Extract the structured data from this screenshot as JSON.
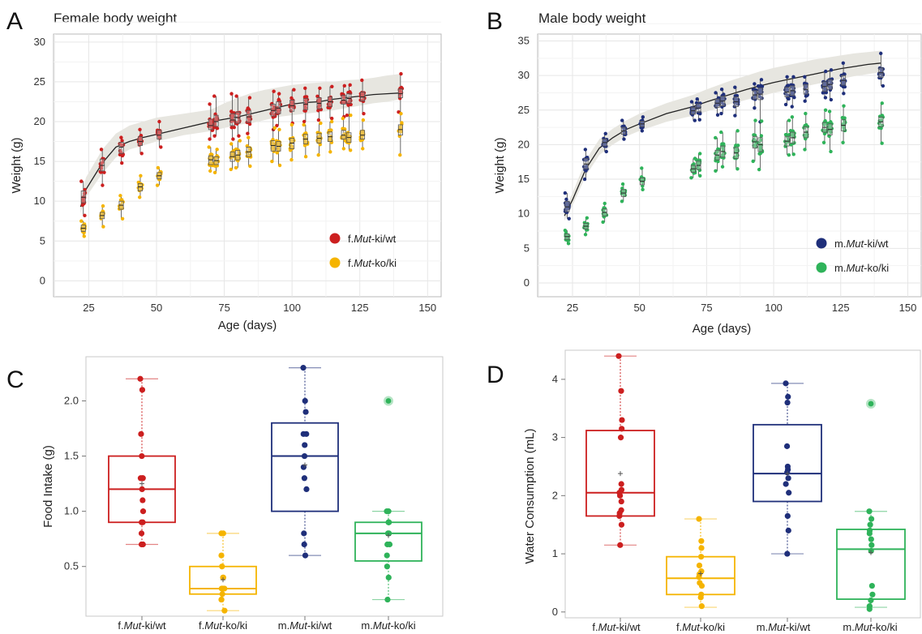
{
  "panels": {
    "A": {
      "letter": "A"
    },
    "B": {
      "letter": "B"
    },
    "C": {
      "letter": "C"
    },
    "D": {
      "letter": "D"
    }
  },
  "colors": {
    "f_ki_wt": "#cc1f1f",
    "f_ko_ki": "#f5b400",
    "m_ki_wt": "#1f2f7a",
    "m_ko_ki": "#2fb35a",
    "ref_band": "#e7e6e0"
  },
  "chart_data": [
    {
      "id": "A",
      "type": "scatter",
      "title": "Female body weight",
      "xlabel": "Age (days)",
      "ylabel": "Weight (g)",
      "xlim": [
        12,
        155
      ],
      "ylim": [
        -2,
        31
      ],
      "xticks": [
        25,
        50,
        75,
        100,
        125,
        150
      ],
      "yticks": [
        0,
        5,
        10,
        15,
        20,
        25,
        30
      ],
      "grid": true,
      "legend_position": "bottom-right",
      "reference_curve": {
        "x": [
          22,
          24,
          30,
          35,
          40,
          45,
          50,
          60,
          70,
          75,
          80,
          85,
          90,
          95,
          100,
          105,
          110,
          115,
          120,
          125,
          130,
          135,
          140
        ],
        "y": [
          9.3,
          11.5,
          14.8,
          16.8,
          17.5,
          18.0,
          18.4,
          19.2,
          20.0,
          20.3,
          20.6,
          21.0,
          21.4,
          21.8,
          22.2,
          22.4,
          22.5,
          22.8,
          23.0,
          23.2,
          23.4,
          23.5,
          23.6
        ],
        "band_low": [
          8.5,
          10.5,
          13.5,
          15.5,
          16.5,
          17.0,
          17.5,
          18.3,
          18.8,
          19.2,
          19.6,
          19.8,
          20.2,
          20.6,
          20.8,
          21.0,
          21.2,
          21.4,
          21.7,
          22.0,
          22.3,
          22.5,
          22.8
        ],
        "band_high": [
          10.5,
          13.0,
          16.5,
          18.5,
          19.5,
          20.0,
          20.5,
          21.0,
          21.5,
          22.3,
          23.0,
          23.6,
          24.0,
          24.3,
          24.6,
          24.8,
          24.9,
          25.0,
          25.2,
          25.3,
          25.5,
          25.8,
          26.0
        ]
      },
      "series": [
        {
          "name": "f.Mut-ki/wt",
          "color_key": "f_ki_wt",
          "ages": [
            23,
            30,
            37,
            44,
            51,
            70,
            72,
            78,
            80,
            84,
            93,
            95,
            100,
            105,
            110,
            114,
            119,
            121,
            126,
            140
          ],
          "median": [
            10.5,
            14.5,
            16.8,
            17.5,
            18.3,
            19.5,
            20.0,
            20.2,
            20.5,
            20.6,
            21.4,
            21.7,
            22.0,
            22.2,
            22.3,
            22.5,
            22.7,
            22.9,
            23.1,
            23.5
          ],
          "q1": [
            9.8,
            13.8,
            16.0,
            17.0,
            17.8,
            19.0,
            19.4,
            19.5,
            19.8,
            19.9,
            20.7,
            21.0,
            21.3,
            21.5,
            21.6,
            21.9,
            22.2,
            22.3,
            22.6,
            23.0
          ],
          "q3": [
            11.3,
            15.3,
            17.4,
            18.1,
            18.9,
            20.3,
            20.8,
            21.0,
            21.2,
            21.4,
            22.2,
            22.5,
            22.7,
            22.9,
            23.0,
            23.1,
            23.3,
            23.5,
            23.7,
            24.1
          ],
          "min": [
            8.2,
            12.0,
            14.8,
            16.0,
            16.8,
            17.8,
            18.2,
            17.8,
            18.2,
            18.5,
            19.0,
            19.5,
            19.8,
            20.0,
            20.2,
            20.4,
            20.6,
            20.8,
            21.0,
            21.2
          ],
          "max": [
            12.5,
            16.5,
            18.0,
            19.0,
            20.0,
            22.2,
            23.2,
            23.5,
            23.2,
            23.0,
            23.8,
            23.5,
            24.0,
            24.2,
            24.2,
            24.4,
            24.5,
            24.6,
            25.2,
            26.0
          ]
        },
        {
          "name": "f.Mut-ko/ki",
          "color_key": "f_ko_ki",
          "ages": [
            23,
            30,
            37,
            44,
            51,
            70,
            72,
            78,
            80,
            84,
            93,
            95,
            100,
            105,
            110,
            114,
            119,
            121,
            126,
            140
          ],
          "median": [
            6.6,
            8.2,
            9.5,
            11.8,
            13.2,
            15.2,
            15.1,
            15.6,
            15.8,
            16.2,
            17.0,
            16.9,
            17.3,
            17.8,
            17.9,
            18.1,
            18.3,
            18.0,
            18.3,
            19.0
          ],
          "q1": [
            6.2,
            7.8,
            9.0,
            11.3,
            12.8,
            14.6,
            14.6,
            15.0,
            15.2,
            15.6,
            16.3,
            16.3,
            16.6,
            17.2,
            17.3,
            17.5,
            17.8,
            17.4,
            17.8,
            18.3
          ],
          "q3": [
            7.0,
            8.6,
            10.0,
            12.2,
            13.6,
            15.7,
            15.6,
            16.2,
            16.4,
            16.8,
            17.6,
            17.5,
            17.9,
            18.4,
            18.5,
            18.7,
            18.9,
            18.6,
            18.9,
            19.6
          ],
          "min": [
            5.6,
            6.8,
            7.8,
            10.5,
            12.0,
            13.8,
            13.6,
            14.0,
            14.2,
            14.4,
            15.0,
            14.5,
            15.2,
            15.6,
            15.8,
            16.2,
            16.6,
            16.4,
            16.6,
            15.8
          ],
          "max": [
            7.5,
            9.4,
            10.7,
            13.2,
            14.2,
            16.8,
            16.5,
            17.2,
            17.6,
            18.0,
            19.2,
            19.0,
            19.6,
            19.6,
            19.8,
            20.0,
            20.4,
            20.8,
            20.2,
            21.0
          ]
        }
      ]
    },
    {
      "id": "B",
      "type": "scatter",
      "title": "Male body weight",
      "xlabel": "Age (days)",
      "ylabel": "Weight (g)",
      "xlim": [
        12,
        155
      ],
      "ylim": [
        -2,
        36
      ],
      "xticks": [
        25,
        50,
        75,
        100,
        125,
        150
      ],
      "yticks": [
        0,
        5,
        10,
        15,
        20,
        25,
        30,
        35
      ],
      "grid": true,
      "legend_position": "bottom-right",
      "reference_curve": {
        "x": [
          22,
          25,
          30,
          35,
          40,
          45,
          50,
          60,
          70,
          75,
          80,
          85,
          90,
          95,
          100,
          105,
          110,
          115,
          120,
          125,
          130,
          135,
          140
        ],
        "y": [
          9.7,
          12.0,
          16.5,
          19.5,
          21.0,
          22.2,
          23.0,
          24.5,
          25.5,
          26.2,
          26.8,
          27.4,
          28.0,
          28.5,
          29.0,
          29.4,
          29.8,
          30.2,
          30.6,
          31.0,
          31.3,
          31.6,
          31.8
        ],
        "band_low": [
          9.0,
          11.2,
          15.5,
          18.5,
          20.0,
          21.2,
          22.0,
          23.3,
          24.2,
          24.8,
          25.4,
          26.0,
          26.5,
          27.0,
          27.5,
          27.9,
          28.3,
          28.7,
          29.1,
          29.5,
          29.9,
          30.2,
          30.5
        ],
        "band_high": [
          10.5,
          13.0,
          17.8,
          20.8,
          22.3,
          23.5,
          24.5,
          26.0,
          27.2,
          28.0,
          28.7,
          29.4,
          30.0,
          30.6,
          31.1,
          31.5,
          31.9,
          32.3,
          32.6,
          32.9,
          33.2,
          33.4,
          33.6
        ]
      },
      "series": [
        {
          "name": "m.Mut-ki/wt",
          "color_key": "m_ki_wt",
          "ages": [
            23,
            30,
            37,
            44,
            51,
            70,
            72,
            79,
            81,
            86,
            93,
            95,
            105,
            107,
            112,
            119,
            121,
            126,
            140
          ],
          "median": [
            11.0,
            17.2,
            20.3,
            22.0,
            23.0,
            24.9,
            25.3,
            26.0,
            26.3,
            26.2,
            27.2,
            27.3,
            27.6,
            27.8,
            28.0,
            28.4,
            28.7,
            29.3,
            30.4
          ],
          "q1": [
            10.3,
            16.5,
            19.8,
            21.5,
            22.6,
            24.4,
            24.7,
            25.4,
            25.6,
            25.5,
            26.6,
            26.5,
            26.9,
            27.1,
            27.3,
            27.7,
            28.0,
            28.6,
            29.7
          ],
          "q3": [
            11.8,
            18.0,
            20.8,
            22.5,
            23.4,
            25.4,
            25.9,
            26.6,
            27.0,
            26.9,
            27.8,
            28.2,
            28.3,
            28.5,
            28.7,
            29.1,
            29.4,
            30.0,
            31.1
          ],
          "min": [
            9.3,
            15.0,
            19.0,
            20.8,
            22.0,
            23.5,
            23.6,
            24.3,
            24.5,
            24.2,
            25.3,
            23.3,
            25.8,
            25.5,
            26.3,
            26.8,
            26.5,
            27.4,
            28.5
          ],
          "max": [
            13.0,
            19.3,
            21.6,
            23.5,
            24.0,
            26.2,
            26.6,
            27.5,
            28.0,
            28.3,
            28.8,
            29.4,
            29.8,
            29.8,
            29.8,
            30.6,
            30.8,
            31.8,
            33.2
          ]
        },
        {
          "name": "m.Mut-ko/ki",
          "color_key": "m_ko_ki",
          "ages": [
            23,
            30,
            37,
            44,
            51,
            70,
            72,
            79,
            81,
            86,
            93,
            95,
            105,
            107,
            112,
            119,
            121,
            126,
            140
          ],
          "median": [
            6.7,
            8.2,
            10.2,
            13.0,
            14.7,
            16.5,
            17.0,
            18.5,
            19.0,
            18.8,
            20.4,
            20.0,
            20.5,
            21.0,
            21.8,
            22.5,
            22.2,
            22.8,
            23.3
          ],
          "q1": [
            6.3,
            7.8,
            9.7,
            12.5,
            14.2,
            16.0,
            16.4,
            17.8,
            18.2,
            18.0,
            19.5,
            19.0,
            19.8,
            20.2,
            21.0,
            21.8,
            21.4,
            22.0,
            22.6
          ],
          "q3": [
            7.1,
            8.6,
            10.7,
            13.5,
            15.2,
            17.0,
            17.6,
            19.2,
            19.8,
            19.6,
            21.2,
            21.0,
            21.2,
            21.8,
            22.6,
            23.2,
            23.0,
            23.6,
            24.0
          ],
          "min": [
            5.7,
            7.0,
            8.8,
            11.8,
            13.5,
            15.2,
            15.5,
            16.2,
            16.8,
            16.5,
            17.6,
            16.4,
            18.5,
            18.6,
            19.3,
            20.3,
            19.0,
            20.3,
            20.2
          ],
          "max": [
            7.6,
            9.4,
            11.5,
            14.3,
            16.6,
            18.0,
            18.7,
            21.0,
            21.8,
            22.0,
            23.5,
            23.4,
            23.5,
            24.0,
            24.5,
            25.0,
            24.8,
            25.6,
            26.0
          ]
        }
      ]
    },
    {
      "id": "C",
      "type": "box",
      "ylabel": "Food Intake (g)",
      "ylim": [
        0.05,
        2.4
      ],
      "yticks": [
        0.5,
        1.0,
        1.5,
        2.0
      ],
      "yticklabels": [
        "0.5",
        "1.0",
        "1.5",
        "2.0"
      ],
      "categories": [
        "f.Mut-ki/wt",
        "f.Mut-ko/ki",
        "m.Mut-ki/wt",
        "m.Mut-ko/ki"
      ],
      "color_keys": [
        "f_ki_wt",
        "f_ko_ki",
        "m_ki_wt",
        "m_ko_ki"
      ],
      "boxes": [
        {
          "q1": 0.9,
          "median": 1.2,
          "q3": 1.5,
          "whisker_low": 0.7,
          "whisker_high": 2.2,
          "mean": 1.25,
          "points": [
            2.2,
            2.1,
            1.7,
            1.5,
            1.3,
            1.3,
            1.3,
            1.2,
            1.1,
            1.0,
            0.9,
            0.9,
            0.8,
            0.7,
            0.7
          ],
          "outliers": []
        },
        {
          "q1": 0.25,
          "median": 0.3,
          "q3": 0.5,
          "whisker_low": 0.1,
          "whisker_high": 0.8,
          "mean": 0.38,
          "points": [
            0.8,
            0.8,
            0.6,
            0.5,
            0.4,
            0.4,
            0.3,
            0.3,
            0.3,
            0.3,
            0.25,
            0.2,
            0.2,
            0.1
          ],
          "outliers": []
        },
        {
          "q1": 1.0,
          "median": 1.5,
          "q3": 1.8,
          "whisker_low": 0.6,
          "whisker_high": 2.3,
          "mean": 1.42,
          "points": [
            2.3,
            2.0,
            1.9,
            1.7,
            1.7,
            1.6,
            1.5,
            1.4,
            1.3,
            1.2,
            0.8,
            0.7,
            0.6
          ],
          "outliers": []
        },
        {
          "q1": 0.55,
          "median": 0.8,
          "q3": 0.9,
          "whisker_low": 0.2,
          "whisker_high": 1.0,
          "mean": 0.78,
          "points": [
            1.0,
            1.0,
            0.9,
            0.9,
            0.9,
            0.8,
            0.8,
            0.7,
            0.7,
            0.6,
            0.5,
            0.4,
            0.2
          ],
          "outliers": [
            2.0
          ]
        }
      ]
    },
    {
      "id": "D",
      "type": "box",
      "ylabel": "Water Consumption  (mL)",
      "ylim": [
        -0.1,
        4.5
      ],
      "yticks": [
        0,
        1,
        2,
        3,
        4
      ],
      "yticklabels": [
        "0",
        "1",
        "2",
        "3",
        "4"
      ],
      "categories": [
        "f.Mut-ki/wt",
        "f.Mut-ko/ki",
        "m.Mut-ki/wt",
        "m.Mut-ko/ki"
      ],
      "color_keys": [
        "f_ki_wt",
        "f_ko_ki",
        "m_ki_wt",
        "m_ko_ki"
      ],
      "boxes": [
        {
          "q1": 1.65,
          "median": 2.05,
          "q3": 3.12,
          "whisker_low": 1.15,
          "whisker_high": 4.4,
          "mean": 2.38,
          "points": [
            4.4,
            3.8,
            3.3,
            3.15,
            3.0,
            2.2,
            2.1,
            2.05,
            2.0,
            1.9,
            1.75,
            1.7,
            1.65,
            1.5,
            1.15
          ],
          "outliers": []
        },
        {
          "q1": 0.3,
          "median": 0.58,
          "q3": 0.95,
          "whisker_low": 0.08,
          "whisker_high": 1.6,
          "mean": 0.66,
          "points": [
            1.6,
            1.22,
            1.1,
            0.95,
            0.8,
            0.7,
            0.65,
            0.6,
            0.5,
            0.45,
            0.3,
            0.25,
            0.1
          ],
          "outliers": []
        },
        {
          "q1": 1.9,
          "median": 2.38,
          "q3": 3.22,
          "whisker_low": 1.0,
          "whisker_high": 3.93,
          "mean": 2.38,
          "points": [
            3.93,
            3.7,
            3.6,
            2.85,
            2.5,
            2.45,
            2.4,
            2.3,
            2.2,
            2.05,
            1.65,
            1.4,
            1.0
          ],
          "outliers": []
        },
        {
          "q1": 0.22,
          "median": 1.08,
          "q3": 1.42,
          "whisker_low": 0.08,
          "whisker_high": 1.73,
          "mean": 1.02,
          "points": [
            1.73,
            1.6,
            1.5,
            1.4,
            1.35,
            1.25,
            1.15,
            1.05,
            0.45,
            0.3,
            0.2,
            0.1,
            0.05
          ],
          "outliers": [
            3.58
          ]
        }
      ]
    }
  ]
}
